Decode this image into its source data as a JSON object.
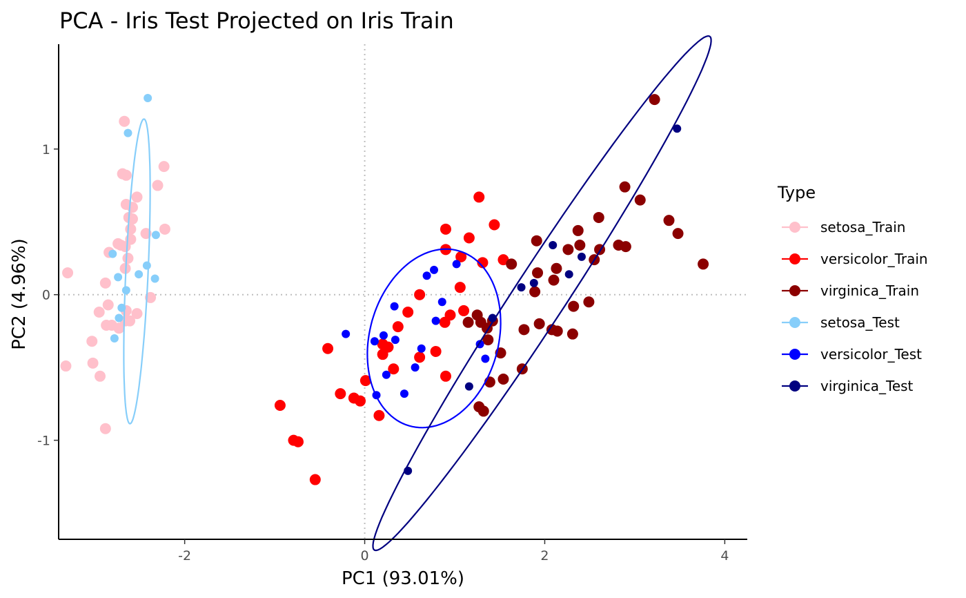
{
  "chart_data": {
    "type": "scatter",
    "title": "PCA - Iris Test Projected on Iris Train",
    "xlabel": "PC1 (93.01%)",
    "ylabel": "PC2 (4.96%)",
    "xlim": [
      -3.4,
      4.25
    ],
    "ylim": [
      -1.68,
      1.72
    ],
    "x_ticks": [
      -2,
      0,
      2,
      4
    ],
    "x_tick_labels": [
      "-2",
      "0",
      "2",
      "4"
    ],
    "y_ticks": [
      -1,
      0,
      1
    ],
    "y_tick_labels": [
      "-1",
      "0",
      "1"
    ],
    "grid": false,
    "reference_lines": {
      "x": 0,
      "y": 0,
      "style": "dotted"
    },
    "legend": {
      "title": "Type",
      "position": "right"
    },
    "series": [
      {
        "name": "setosa_Train",
        "color": "#FFC0CB",
        "point_size": 8,
        "points": [
          [
            -2.67,
            1.19
          ],
          [
            -2.23,
            0.88
          ],
          [
            -2.69,
            0.83
          ],
          [
            -2.65,
            0.82
          ],
          [
            -2.3,
            0.75
          ],
          [
            -2.53,
            0.67
          ],
          [
            -2.65,
            0.62
          ],
          [
            -2.58,
            0.6
          ],
          [
            -2.62,
            0.53
          ],
          [
            -2.58,
            0.52
          ],
          [
            -2.22,
            0.45
          ],
          [
            -2.6,
            0.45
          ],
          [
            -2.43,
            0.42
          ],
          [
            -2.6,
            0.38
          ],
          [
            -2.74,
            0.35
          ],
          [
            -2.71,
            0.34
          ],
          [
            -2.66,
            0.33
          ],
          [
            -2.84,
            0.29
          ],
          [
            -2.63,
            0.25
          ],
          [
            -2.66,
            0.18
          ],
          [
            -3.3,
            0.15
          ],
          [
            -2.88,
            0.08
          ],
          [
            -2.38,
            -0.02
          ],
          [
            -2.85,
            -0.07
          ],
          [
            -2.95,
            -0.12
          ],
          [
            -2.65,
            -0.11
          ],
          [
            -2.53,
            -0.13
          ],
          [
            -2.66,
            -0.18
          ],
          [
            -2.61,
            -0.18
          ],
          [
            -2.87,
            -0.21
          ],
          [
            -2.81,
            -0.21
          ],
          [
            -2.73,
            -0.23
          ],
          [
            -3.03,
            -0.32
          ],
          [
            -3.02,
            -0.47
          ],
          [
            -3.32,
            -0.49
          ],
          [
            -2.94,
            -0.56
          ],
          [
            -2.88,
            -0.92
          ]
        ]
      },
      {
        "name": "versicolor_Train",
        "color": "#FF0000",
        "point_size": 8,
        "points": [
          [
            1.27,
            0.67
          ],
          [
            1.44,
            0.48
          ],
          [
            0.9,
            0.45
          ],
          [
            1.16,
            0.39
          ],
          [
            0.9,
            0.31
          ],
          [
            1.07,
            0.26
          ],
          [
            1.31,
            0.22
          ],
          [
            1.54,
            0.24
          ],
          [
            1.06,
            0.05
          ],
          [
            0.61,
            0.0
          ],
          [
            1.1,
            -0.11
          ],
          [
            0.48,
            -0.12
          ],
          [
            0.95,
            -0.14
          ],
          [
            0.89,
            -0.19
          ],
          [
            0.37,
            -0.22
          ],
          [
            0.2,
            -0.34
          ],
          [
            0.26,
            -0.36
          ],
          [
            0.2,
            -0.41
          ],
          [
            0.79,
            -0.39
          ],
          [
            0.61,
            -0.43
          ],
          [
            0.32,
            -0.51
          ],
          [
            -0.41,
            -0.37
          ],
          [
            0.9,
            -0.56
          ],
          [
            0.01,
            -0.59
          ],
          [
            -0.27,
            -0.68
          ],
          [
            -0.12,
            -0.71
          ],
          [
            -0.05,
            -0.73
          ],
          [
            0.16,
            -0.83
          ],
          [
            -0.94,
            -0.76
          ],
          [
            -0.79,
            -1.0
          ],
          [
            -0.74,
            -1.01
          ],
          [
            -0.55,
            -1.27
          ]
        ]
      },
      {
        "name": "virginica_Train",
        "color": "#8B0000",
        "point_size": 8,
        "points": [
          [
            3.22,
            1.34
          ],
          [
            2.89,
            0.74
          ],
          [
            3.06,
            0.65
          ],
          [
            2.6,
            0.53
          ],
          [
            3.38,
            0.51
          ],
          [
            3.48,
            0.42
          ],
          [
            2.37,
            0.44
          ],
          [
            1.91,
            0.37
          ],
          [
            2.39,
            0.34
          ],
          [
            2.82,
            0.34
          ],
          [
            2.9,
            0.33
          ],
          [
            2.26,
            0.31
          ],
          [
            2.61,
            0.31
          ],
          [
            2.55,
            0.24
          ],
          [
            1.63,
            0.21
          ],
          [
            2.13,
            0.18
          ],
          [
            1.92,
            0.15
          ],
          [
            2.1,
            0.1
          ],
          [
            1.89,
            0.02
          ],
          [
            3.76,
            0.21
          ],
          [
            2.32,
            -0.08
          ],
          [
            2.49,
            -0.05
          ],
          [
            1.36,
            -0.23
          ],
          [
            1.25,
            -0.14
          ],
          [
            1.15,
            -0.19
          ],
          [
            1.29,
            -0.19
          ],
          [
            1.42,
            -0.18
          ],
          [
            1.94,
            -0.2
          ],
          [
            1.77,
            -0.24
          ],
          [
            2.08,
            -0.24
          ],
          [
            2.14,
            -0.25
          ],
          [
            2.31,
            -0.27
          ],
          [
            1.37,
            -0.31
          ],
          [
            1.51,
            -0.4
          ],
          [
            1.75,
            -0.51
          ],
          [
            1.54,
            -0.58
          ],
          [
            1.39,
            -0.6
          ],
          [
            1.27,
            -0.77
          ],
          [
            1.32,
            -0.8
          ]
        ]
      },
      {
        "name": "setosa_Test",
        "color": "#87CEFA",
        "point_size": 6,
        "points": [
          [
            -2.41,
            1.35
          ],
          [
            -2.63,
            1.11
          ],
          [
            -2.32,
            0.41
          ],
          [
            -2.8,
            0.28
          ],
          [
            -2.42,
            0.2
          ],
          [
            -2.51,
            0.14
          ],
          [
            -2.33,
            0.11
          ],
          [
            -2.74,
            0.12
          ],
          [
            -2.65,
            0.03
          ],
          [
            -2.7,
            -0.09
          ],
          [
            -2.73,
            -0.16
          ],
          [
            -2.78,
            -0.3
          ]
        ]
      },
      {
        "name": "versicolor_Test",
        "color": "#0000FF",
        "point_size": 6,
        "points": [
          [
            0.77,
            0.17
          ],
          [
            1.02,
            0.21
          ],
          [
            0.69,
            0.13
          ],
          [
            0.33,
            -0.08
          ],
          [
            0.86,
            -0.05
          ],
          [
            0.79,
            -0.18
          ],
          [
            -0.21,
            -0.27
          ],
          [
            0.21,
            -0.28
          ],
          [
            0.34,
            -0.31
          ],
          [
            0.11,
            -0.32
          ],
          [
            1.28,
            -0.34
          ],
          [
            0.63,
            -0.37
          ],
          [
            0.56,
            -0.5
          ],
          [
            1.34,
            -0.44
          ],
          [
            0.24,
            -0.55
          ],
          [
            0.13,
            -0.69
          ],
          [
            0.44,
            -0.68
          ]
        ]
      },
      {
        "name": "virginica_Test",
        "color": "#000080",
        "point_size": 6,
        "points": [
          [
            3.47,
            1.14
          ],
          [
            2.09,
            0.34
          ],
          [
            2.41,
            0.26
          ],
          [
            2.27,
            0.14
          ],
          [
            1.88,
            0.08
          ],
          [
            1.74,
            0.05
          ],
          [
            1.42,
            -0.16
          ],
          [
            1.16,
            -0.63
          ],
          [
            0.48,
            -1.21
          ]
        ]
      }
    ],
    "ellipses": [
      {
        "series": "setosa_Test",
        "color": "#87CEFA",
        "center": [
          -2.53,
          0.16
        ],
        "rx": 1.049,
        "ry": 0.124,
        "angle_deg": 85.7
      },
      {
        "series": "versicolor_Test",
        "color": "#0000FF",
        "center": [
          0.77,
          -0.3
        ],
        "rx": 0.762,
        "ry": 0.586,
        "angle_deg": 21.7
      },
      {
        "series": "virginica_Test",
        "color": "#000080",
        "center": [
          1.97,
          0.01
        ],
        "rx": 2.568,
        "ry": 0.237,
        "angle_deg": 43.2
      }
    ]
  }
}
